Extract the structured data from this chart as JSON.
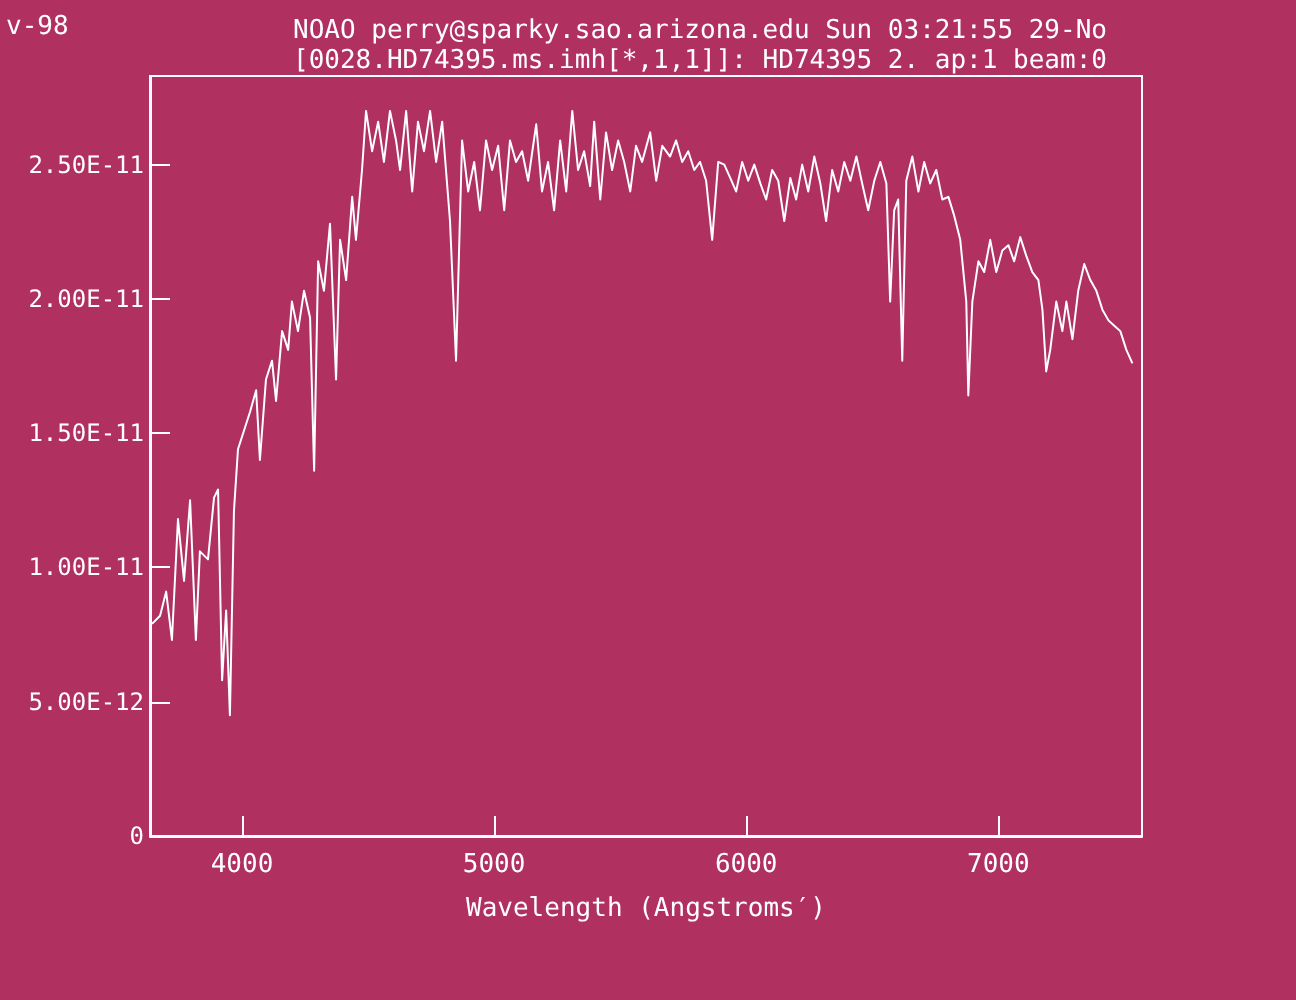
{
  "chart_data": {
    "type": "line",
    "title": "NOAO perry@sparky.sao.arizona.edu Sun 03:21:55 29-No",
    "subtitle": "[0028.HD74395.ms.imh[*,1,1]]: HD74395 2. ap:1 beam:0",
    "xlabel": "Wavelength (Angstroms′)",
    "annotations": [
      "v-98"
    ],
    "xlim": [
      3635,
      7570
    ],
    "xticks": [
      4000,
      5000,
      6000,
      7000
    ],
    "ylim": [
      0,
      2.83e-11
    ],
    "yticks": [
      0,
      {
        "value": 5e-12,
        "label": "5.00E-12"
      },
      {
        "value": 1e-11,
        "label": "1.00E-11"
      },
      {
        "value": 1.5e-11,
        "label": "1.50E-11"
      },
      {
        "value": 2e-11,
        "label": "2.00E-11"
      },
      {
        "value": 2.5e-11,
        "label": "2.50E-11"
      }
    ],
    "grid": false,
    "marker": "none",
    "line_style": "solid",
    "series": [
      {
        "color": "#ffffff",
        "x": [
          3643,
          3675,
          3699,
          3722,
          3746,
          3770,
          3794,
          3817,
          3833,
          3865,
          3889,
          3905,
          3921,
          3937,
          3952,
          3968,
          3984,
          4008,
          4032,
          4056,
          4071,
          4095,
          4119,
          4135,
          4159,
          4183,
          4198,
          4222,
          4246,
          4270,
          4286,
          4302,
          4325,
          4349,
          4373,
          4389,
          4413,
          4437,
          4452,
          4476,
          4492,
          4516,
          4540,
          4563,
          4587,
          4611,
          4627,
          4651,
          4675,
          4698,
          4722,
          4746,
          4770,
          4794,
          4825,
          4849,
          4873,
          4897,
          4921,
          4944,
          4968,
          4992,
          5016,
          5040,
          5063,
          5087,
          5111,
          5135,
          5167,
          5190,
          5214,
          5238,
          5262,
          5286,
          5310,
          5333,
          5357,
          5381,
          5397,
          5421,
          5444,
          5468,
          5492,
          5516,
          5540,
          5563,
          5587,
          5619,
          5643,
          5667,
          5698,
          5722,
          5746,
          5770,
          5794,
          5817,
          5841,
          5865,
          5889,
          5913,
          5937,
          5960,
          5984,
          6008,
          6032,
          6056,
          6079,
          6103,
          6127,
          6151,
          6175,
          6198,
          6222,
          6246,
          6270,
          6294,
          6317,
          6341,
          6365,
          6389,
          6413,
          6437,
          6460,
          6484,
          6508,
          6532,
          6556,
          6571,
          6587,
          6603,
          6619,
          6635,
          6659,
          6683,
          6706,
          6730,
          6754,
          6778,
          6802,
          6825,
          6849,
          6873,
          6881,
          6897,
          6921,
          6944,
          6968,
          6992,
          7016,
          7040,
          7063,
          7087,
          7111,
          7135,
          7159,
          7175,
          7190,
          7206,
          7230,
          7254,
          7270,
          7294,
          7317,
          7341,
          7365,
          7389,
          7413,
          7437,
          7460,
          7484,
          7508,
          7532
        ],
        "values": [
          7.9e-12,
          8.2e-12,
          9.1e-12,
          7.3e-12,
          1.18e-11,
          9.5e-12,
          1.25e-11,
          7.3e-12,
          1.06e-11,
          1.03e-11,
          1.26e-11,
          1.29e-11,
          5.8e-12,
          8.4e-12,
          4.5e-12,
          1.21e-11,
          1.44e-11,
          1.51e-11,
          1.58e-11,
          1.66e-11,
          1.4e-11,
          1.7e-11,
          1.77e-11,
          1.62e-11,
          1.88e-11,
          1.81e-11,
          1.99e-11,
          1.88e-11,
          2.03e-11,
          1.93e-11,
          1.36e-11,
          2.14e-11,
          2.03e-11,
          2.28e-11,
          1.7e-11,
          2.22e-11,
          2.07e-11,
          2.38e-11,
          2.22e-11,
          2.48e-11,
          2.7e-11,
          2.55e-11,
          2.66e-11,
          2.51e-11,
          2.7e-11,
          2.59e-11,
          2.48e-11,
          2.7e-11,
          2.4e-11,
          2.66e-11,
          2.55e-11,
          2.7e-11,
          2.51e-11,
          2.66e-11,
          2.29e-11,
          1.77e-11,
          2.59e-11,
          2.4e-11,
          2.51e-11,
          2.33e-11,
          2.59e-11,
          2.48e-11,
          2.57e-11,
          2.33e-11,
          2.59e-11,
          2.51e-11,
          2.55e-11,
          2.44e-11,
          2.65e-11,
          2.4e-11,
          2.51e-11,
          2.33e-11,
          2.59e-11,
          2.4e-11,
          2.7e-11,
          2.48e-11,
          2.55e-11,
          2.42e-11,
          2.66e-11,
          2.37e-11,
          2.62e-11,
          2.48e-11,
          2.59e-11,
          2.51e-11,
          2.4e-11,
          2.57e-11,
          2.51e-11,
          2.62e-11,
          2.44e-11,
          2.57e-11,
          2.53e-11,
          2.59e-11,
          2.51e-11,
          2.55e-11,
          2.48e-11,
          2.51e-11,
          2.44e-11,
          2.22e-11,
          2.51e-11,
          2.5e-11,
          2.45e-11,
          2.4e-11,
          2.51e-11,
          2.44e-11,
          2.5e-11,
          2.43e-11,
          2.37e-11,
          2.48e-11,
          2.44e-11,
          2.29e-11,
          2.45e-11,
          2.37e-11,
          2.5e-11,
          2.4e-11,
          2.53e-11,
          2.43e-11,
          2.29e-11,
          2.48e-11,
          2.4e-11,
          2.51e-11,
          2.44e-11,
          2.53e-11,
          2.43e-11,
          2.33e-11,
          2.44e-11,
          2.51e-11,
          2.43e-11,
          1.99e-11,
          2.33e-11,
          2.37e-11,
          1.77e-11,
          2.44e-11,
          2.53e-11,
          2.4e-11,
          2.51e-11,
          2.43e-11,
          2.48e-11,
          2.37e-11,
          2.38e-11,
          2.31e-11,
          2.22e-11,
          1.99e-11,
          1.64e-11,
          1.99e-11,
          2.14e-11,
          2.1e-11,
          2.22e-11,
          2.1e-11,
          2.18e-11,
          2.2e-11,
          2.14e-11,
          2.23e-11,
          2.16e-11,
          2.1e-11,
          2.07e-11,
          1.96e-11,
          1.73e-11,
          1.81e-11,
          1.99e-11,
          1.88e-11,
          1.99e-11,
          1.85e-11,
          2.03e-11,
          2.13e-11,
          2.07e-11,
          2.03e-11,
          1.96e-11,
          1.92e-11,
          1.9e-11,
          1.88e-11,
          1.81e-11,
          1.76e-11
        ]
      }
    ]
  }
}
